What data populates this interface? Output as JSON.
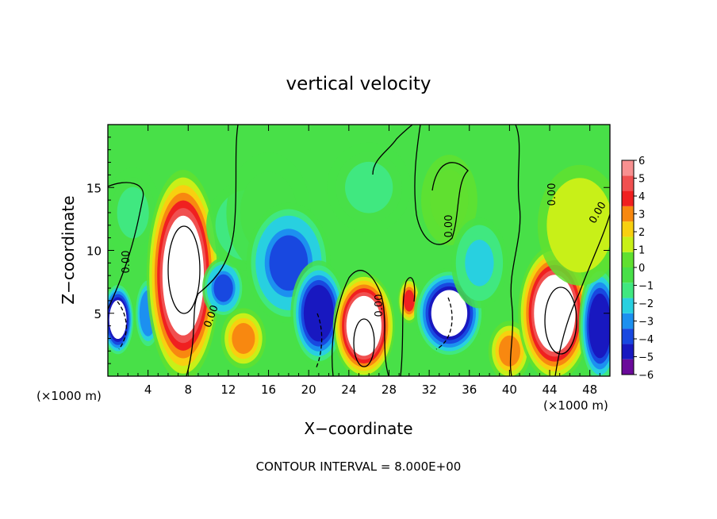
{
  "chart_data": {
    "type": "heatmap",
    "title": "vertical velocity",
    "xlabel": "X−coordinate",
    "ylabel": "Z−coordinate",
    "x_unit_left": "(×1000 m)",
    "x_unit_right": "(×1000 m)",
    "xlim": [
      0,
      50
    ],
    "ylim": [
      0,
      20
    ],
    "xticks": [
      4,
      8,
      12,
      16,
      20,
      24,
      28,
      32,
      36,
      40,
      44,
      48
    ],
    "yticks": [
      5,
      10,
      15
    ],
    "footer": "CONTOUR INTERVAL = 8.000E+00",
    "contour_labels": [
      "0.00",
      "0.00",
      "0.00",
      "0.00",
      "0.00",
      "0.00"
    ],
    "colorbar": {
      "ticks": [
        "6",
        "5",
        "4",
        "3",
        "2",
        "1",
        "0",
        "−1",
        "−2",
        "−3",
        "−4",
        "−5",
        "−6"
      ],
      "levels": [
        -6,
        -5,
        -4,
        -3,
        -2,
        -1,
        0,
        1,
        2,
        3,
        4,
        5,
        6
      ],
      "colors": [
        "#6a0a9a",
        "#1818c0",
        "#1848e0",
        "#1c90f0",
        "#28d0e0",
        "#40e880",
        "#48e048",
        "#60e030",
        "#c8f018",
        "#f8d010",
        "#f88810",
        "#f02020",
        "#f05050",
        "#f89090"
      ]
    },
    "cells": [
      {
        "x": 1,
        "z": 4.5,
        "v": -7,
        "rx": 1.2,
        "rz": 2.5
      },
      {
        "x": 2.5,
        "z": 13,
        "v": -1.5,
        "rx": 2,
        "rz": 3
      },
      {
        "x": 4,
        "z": 5,
        "v": -4,
        "rx": 1,
        "rz": 2.5
      },
      {
        "x": 7.5,
        "z": 8,
        "v": 8,
        "rx": 2.6,
        "rz": 7
      },
      {
        "x": 11.5,
        "z": 7,
        "v": -4.5,
        "rx": 1.5,
        "rz": 2
      },
      {
        "x": 13.5,
        "z": 3,
        "v": 3,
        "rx": 1.6,
        "rz": 2
      },
      {
        "x": 14,
        "z": 12,
        "v": -2,
        "rx": 3,
        "rz": 3
      },
      {
        "x": 16,
        "z": 13,
        "v": -1,
        "rx": 3,
        "rz": 4
      },
      {
        "x": 18,
        "z": 9,
        "v": -4.5,
        "rx": 3,
        "rz": 4
      },
      {
        "x": 21,
        "z": 5,
        "v": -6,
        "rx": 2,
        "rz": 3.5
      },
      {
        "x": 25.5,
        "z": 4,
        "v": 8,
        "rx": 2.2,
        "rz": 3.5
      },
      {
        "x": 30,
        "z": 6,
        "v": 4,
        "rx": 0.8,
        "rz": 1.5
      },
      {
        "x": 26,
        "z": 15,
        "v": -1.5,
        "rx": 3,
        "rz": 3
      },
      {
        "x": 34,
        "z": 5,
        "v": -7,
        "rx": 2.5,
        "rz": 3
      },
      {
        "x": 34,
        "z": 14,
        "v": 0.8,
        "rx": 2,
        "rz": 3
      },
      {
        "x": 37,
        "z": 9,
        "v": -2.5,
        "rx": 2,
        "rz": 3
      },
      {
        "x": 40,
        "z": 2,
        "v": 3,
        "rx": 1.5,
        "rz": 2
      },
      {
        "x": 44.5,
        "z": 5,
        "v": 8,
        "rx": 2.6,
        "rz": 4.5
      },
      {
        "x": 49,
        "z": 4,
        "v": -6,
        "rx": 1.5,
        "rz": 4
      },
      {
        "x": 47,
        "z": 12,
        "v": 1.5,
        "rx": 3,
        "rz": 4
      }
    ]
  }
}
